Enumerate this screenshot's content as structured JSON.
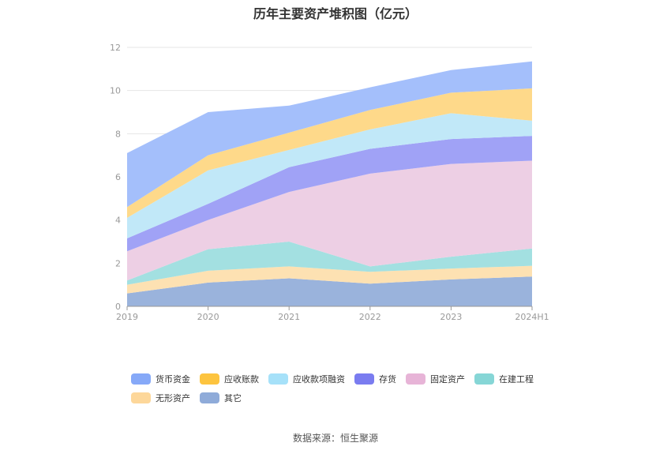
{
  "chart_data": {
    "type": "area",
    "stacked": true,
    "title": "历年主要资产堆积图（亿元）",
    "categories": [
      "2019",
      "2020",
      "2021",
      "2022",
      "2023",
      "2024H1"
    ],
    "ylim": [
      0,
      12
    ],
    "yticks": [
      "0",
      "2",
      "4",
      "6",
      "8",
      "10",
      "12"
    ],
    "grid": true,
    "legend_position": "bottom",
    "series": [
      {
        "name": "其它",
        "color": "#9ab3dc",
        "values": [
          0.6,
          1.1,
          1.3,
          1.05,
          1.25,
          1.38
        ]
      },
      {
        "name": "无形资产",
        "color": "#fde1b2",
        "values": [
          0.4,
          0.55,
          0.55,
          0.55,
          0.5,
          0.5
        ]
      },
      {
        "name": "在建工程",
        "color": "#a3e0e1",
        "values": [
          0.2,
          1.0,
          1.15,
          0.25,
          0.55,
          0.8
        ]
      },
      {
        "name": "固定资产",
        "color": "#edcfe4",
        "values": [
          1.35,
          1.35,
          2.3,
          4.3,
          4.3,
          4.07
        ]
      },
      {
        "name": "存货",
        "color": "#a0a2f6",
        "values": [
          0.6,
          0.75,
          1.15,
          1.15,
          1.15,
          1.15
        ]
      },
      {
        "name": "应收款项融资",
        "color": "#c1e8f8",
        "values": [
          0.95,
          1.55,
          0.8,
          0.9,
          1.2,
          0.7
        ]
      },
      {
        "name": "应收账款",
        "color": "#fed98a",
        "values": [
          0.5,
          0.7,
          0.8,
          0.9,
          0.95,
          1.5
        ]
      },
      {
        "name": "货币资金",
        "color": "#a4bffb",
        "values": [
          2.5,
          2.0,
          1.25,
          1.05,
          1.05,
          1.25
        ]
      }
    ]
  },
  "legend": [
    {
      "name": "货币资金",
      "color": "#86a9f8"
    },
    {
      "name": "应收账款",
      "color": "#fdc43f"
    },
    {
      "name": "应收款项融资",
      "color": "#a6e1f9"
    },
    {
      "name": "存货",
      "color": "#7a7cf0"
    },
    {
      "name": "固定资产",
      "color": "#e7b4d7"
    },
    {
      "name": "在建工程",
      "color": "#86d6d6"
    },
    {
      "name": "无形资产",
      "color": "#fdd79a"
    },
    {
      "name": "其它",
      "color": "#8fabd9"
    }
  ],
  "source": "数据来源：恒生聚源"
}
